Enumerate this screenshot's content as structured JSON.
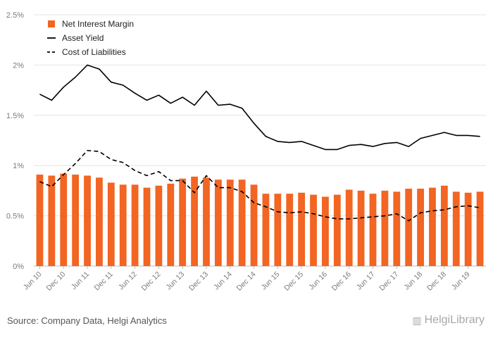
{
  "chart_data": {
    "type": "bar+line",
    "title": "",
    "xlabel": "",
    "ylabel": "",
    "ylim": [
      0,
      2.5
    ],
    "yticks": [
      "0%",
      "0.5%",
      "1%",
      "1.5%",
      "2%",
      "2.5%"
    ],
    "grid": true,
    "legend_position": "top-left",
    "categories": [
      "Jun 10",
      "Sep 10",
      "Dec 10",
      "Mar 11",
      "Jun 11",
      "Sep 11",
      "Dec 11",
      "Mar 12",
      "Jun 12",
      "Sep 12",
      "Dec 12",
      "Mar 13",
      "Jun 13",
      "Sep 13",
      "Dec 13",
      "Mar 14",
      "Jun 14",
      "Sep 14",
      "Dec 14",
      "Mar 15",
      "Jun 15",
      "Sep 15",
      "Dec 15",
      "Mar 16",
      "Jun 16",
      "Sep 16",
      "Dec 16",
      "Mar 17",
      "Jun 17",
      "Sep 17",
      "Dec 17",
      "Mar 18",
      "Jun 18",
      "Sep 18",
      "Dec 18",
      "Mar 19",
      "Jun 19",
      "Sep 19"
    ],
    "xtick_labels": [
      "Jun 10",
      "Dec 10",
      "Jun 11",
      "Dec 11",
      "Jun 12",
      "Dec 12",
      "Jun 13",
      "Dec 13",
      "Jun 14",
      "Dec 14",
      "Jun 15",
      "Dec 15",
      "Jun 16",
      "Dec 16",
      "Jun 17",
      "Dec 17",
      "Jun 18",
      "Dec 18",
      "Jun 19"
    ],
    "series": [
      {
        "name": "Net Interest Margin",
        "kind": "bar",
        "color": "#f26522",
        "values": [
          0.91,
          0.9,
          0.92,
          0.91,
          0.9,
          0.88,
          0.83,
          0.81,
          0.81,
          0.78,
          0.8,
          0.82,
          0.87,
          0.89,
          0.88,
          0.86,
          0.86,
          0.86,
          0.81,
          0.72,
          0.72,
          0.72,
          0.73,
          0.71,
          0.69,
          0.71,
          0.76,
          0.75,
          0.72,
          0.75,
          0.74,
          0.77,
          0.77,
          0.78,
          0.8,
          0.74,
          0.73,
          0.74
        ]
      },
      {
        "name": "Asset Yield",
        "kind": "line",
        "color": "#000000",
        "dash": "solid",
        "values": [
          1.71,
          1.65,
          1.78,
          1.88,
          2.0,
          1.96,
          1.83,
          1.8,
          1.72,
          1.65,
          1.7,
          1.62,
          1.68,
          1.6,
          1.74,
          1.6,
          1.61,
          1.57,
          1.42,
          1.29,
          1.24,
          1.23,
          1.24,
          1.2,
          1.16,
          1.16,
          1.2,
          1.21,
          1.19,
          1.22,
          1.23,
          1.19,
          1.27,
          1.3,
          1.33,
          1.3,
          1.3,
          1.29
        ]
      },
      {
        "name": "Cost of Liabilities",
        "kind": "line",
        "color": "#000000",
        "dash": "dashed",
        "values": [
          0.84,
          0.79,
          0.91,
          1.02,
          1.15,
          1.14,
          1.06,
          1.03,
          0.95,
          0.9,
          0.94,
          0.85,
          0.85,
          0.73,
          0.9,
          0.78,
          0.78,
          0.74,
          0.63,
          0.59,
          0.54,
          0.53,
          0.54,
          0.52,
          0.49,
          0.47,
          0.47,
          0.48,
          0.49,
          0.5,
          0.52,
          0.45,
          0.53,
          0.55,
          0.56,
          0.59,
          0.6,
          0.58
        ]
      }
    ]
  },
  "footer": {
    "source": "Source: Company Data, Helgi Analytics",
    "brand": "HelgiLibrary",
    "brand_icon": "library-icon"
  }
}
